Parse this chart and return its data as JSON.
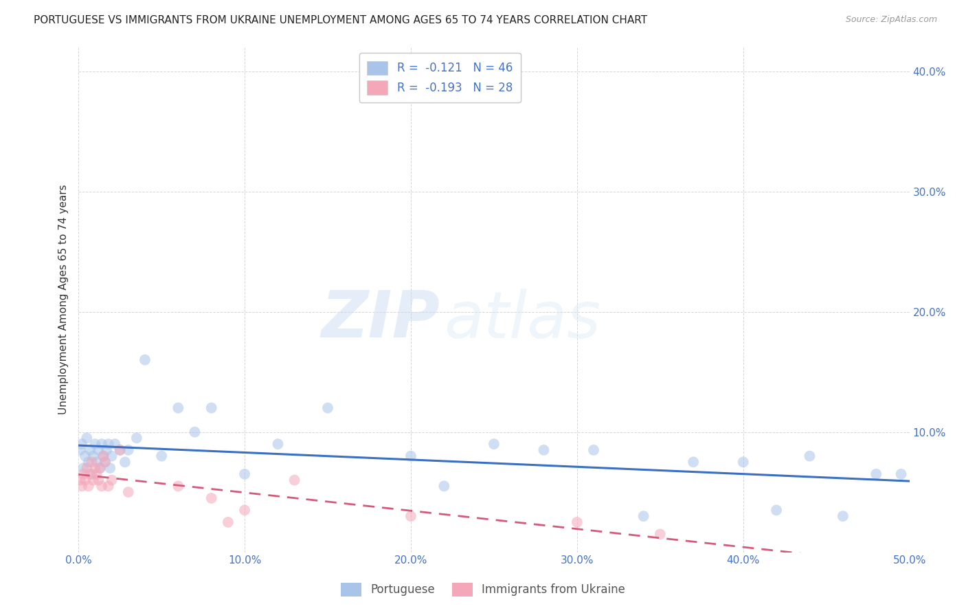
{
  "title": "PORTUGUESE VS IMMIGRANTS FROM UKRAINE UNEMPLOYMENT AMONG AGES 65 TO 74 YEARS CORRELATION CHART",
  "source": "Source: ZipAtlas.com",
  "ylabel": "Unemployment Among Ages 65 to 74 years",
  "xlim": [
    0.0,
    0.5
  ],
  "ylim": [
    0.0,
    0.42
  ],
  "xticks": [
    0.0,
    0.1,
    0.2,
    0.3,
    0.4,
    0.5
  ],
  "yticks": [
    0.0,
    0.1,
    0.2,
    0.3,
    0.4
  ],
  "xticklabels": [
    "0.0%",
    "10.0%",
    "20.0%",
    "30.0%",
    "40.0%",
    "50.0%"
  ],
  "yticklabels": [
    "",
    "10.0%",
    "20.0%",
    "30.0%",
    "40.0%"
  ],
  "portuguese_color": "#a8c4e8",
  "ukraine_color": "#f4a7b9",
  "portuguese_line_color": "#3a6fc4",
  "ukraine_line_color": "#d45a7a",
  "legend_label1": "Portuguese",
  "legend_label2": "Immigrants from Ukraine",
  "legend_R1": "-0.121",
  "legend_N1": "46",
  "legend_R2": "-0.193",
  "legend_N2": "28",
  "portuguese_x": [
    0.001,
    0.002,
    0.003,
    0.004,
    0.005,
    0.006,
    0.007,
    0.008,
    0.009,
    0.01,
    0.011,
    0.012,
    0.013,
    0.014,
    0.015,
    0.016,
    0.017,
    0.018,
    0.019,
    0.02,
    0.022,
    0.025,
    0.028,
    0.03,
    0.035,
    0.04,
    0.05,
    0.06,
    0.07,
    0.08,
    0.1,
    0.12,
    0.15,
    0.2,
    0.22,
    0.25,
    0.28,
    0.31,
    0.34,
    0.37,
    0.4,
    0.42,
    0.44,
    0.46,
    0.48,
    0.495
  ],
  "portuguese_y": [
    0.085,
    0.09,
    0.07,
    0.08,
    0.095,
    0.075,
    0.085,
    0.065,
    0.08,
    0.09,
    0.075,
    0.085,
    0.07,
    0.09,
    0.08,
    0.075,
    0.085,
    0.09,
    0.07,
    0.08,
    0.09,
    0.085,
    0.075,
    0.085,
    0.095,
    0.16,
    0.08,
    0.12,
    0.1,
    0.12,
    0.065,
    0.09,
    0.12,
    0.08,
    0.055,
    0.09,
    0.085,
    0.085,
    0.03,
    0.075,
    0.075,
    0.035,
    0.08,
    0.03,
    0.065,
    0.065
  ],
  "ukraine_x": [
    0.001,
    0.002,
    0.003,
    0.004,
    0.005,
    0.006,
    0.007,
    0.008,
    0.009,
    0.01,
    0.011,
    0.012,
    0.013,
    0.014,
    0.015,
    0.016,
    0.018,
    0.02,
    0.025,
    0.03,
    0.06,
    0.08,
    0.09,
    0.1,
    0.13,
    0.2,
    0.3,
    0.35
  ],
  "ukraine_y": [
    0.06,
    0.055,
    0.065,
    0.06,
    0.07,
    0.055,
    0.065,
    0.075,
    0.06,
    0.07,
    0.065,
    0.06,
    0.07,
    0.055,
    0.08,
    0.075,
    0.055,
    0.06,
    0.085,
    0.05,
    0.055,
    0.045,
    0.025,
    0.035,
    0.06,
    0.03,
    0.025,
    0.015
  ],
  "watermark_zip": "ZIP",
  "watermark_atlas": "atlas",
  "title_fontsize": 11,
  "axis_label_fontsize": 11,
  "tick_fontsize": 11,
  "marker_size": 130,
  "marker_alpha": 0.55,
  "background_color": "#ffffff",
  "grid_color": "#cccccc",
  "tick_color_x": "#4472c4",
  "tick_color_y": "#4472c4"
}
